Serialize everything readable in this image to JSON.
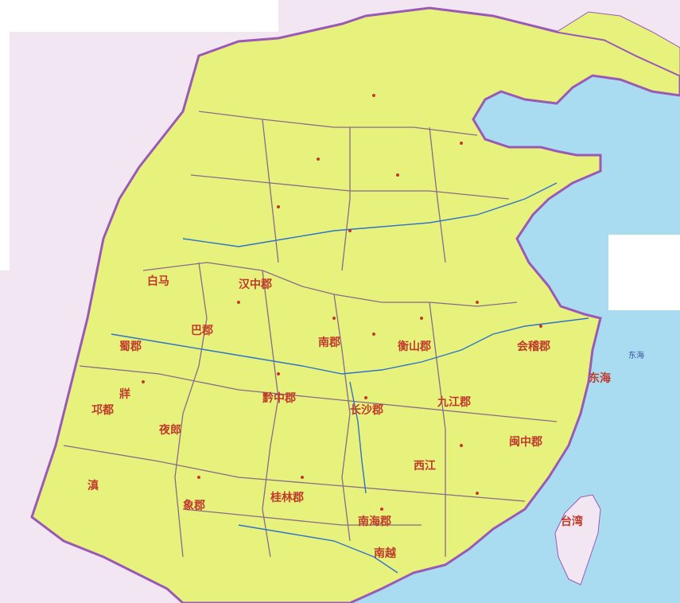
{
  "colors": {
    "qin_land": "#e7f27d",
    "outer_land": "#f1e6f1",
    "sea": "#a9dcf0",
    "border": "#9b59b6",
    "province_border": "#8a6a8a",
    "river": "#2f73c9",
    "text_red": "#c0392b"
  },
  "map_labels": [
    {
      "id": "label-hanzhong",
      "text": "汉中郡"
    },
    {
      "id": "label-bama",
      "text": "白马"
    },
    {
      "id": "label-ba",
      "text": "巴郡"
    },
    {
      "id": "label-shu",
      "text": "蜀郡"
    },
    {
      "id": "label-qian",
      "text": "黔中郡"
    },
    {
      "id": "label-changsha",
      "text": "长沙郡"
    },
    {
      "id": "label-nanjun",
      "text": "南郡"
    },
    {
      "id": "label-hengshan",
      "text": "衡山郡"
    },
    {
      "id": "label-jiujiang",
      "text": "九江郡"
    },
    {
      "id": "label-kuaiji",
      "text": "会稽郡"
    },
    {
      "id": "label-minzhong",
      "text": "闽中郡"
    },
    {
      "id": "label-xiang",
      "text": "象郡"
    },
    {
      "id": "label-guilin",
      "text": "桂林郡"
    },
    {
      "id": "label-nanhai",
      "text": "南海郡"
    },
    {
      "id": "label-yelang",
      "text": "夜郎"
    },
    {
      "id": "label-zang",
      "text": "牂"
    },
    {
      "id": "label-donghai",
      "text": "东海"
    },
    {
      "id": "label-xijiang",
      "text": "西江"
    },
    {
      "id": "label-nanyue",
      "text": "南越"
    },
    {
      "id": "label-taiwan",
      "text": "台湾"
    },
    {
      "id": "label-dian",
      "text": "滇"
    },
    {
      "id": "label-qiong",
      "text": "邛都"
    }
  ]
}
